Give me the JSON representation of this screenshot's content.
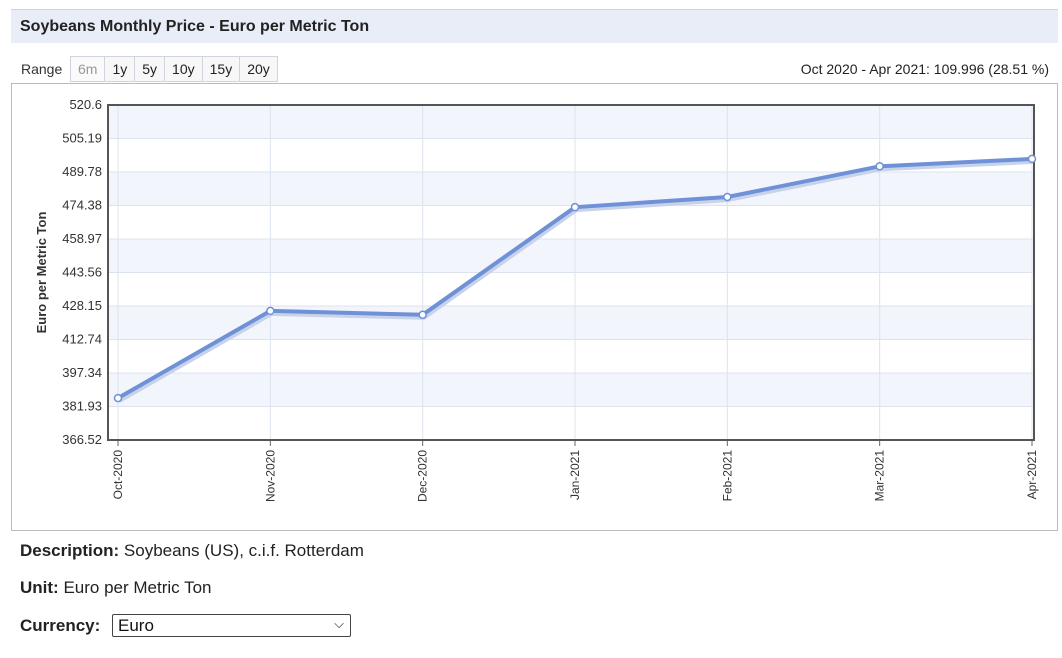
{
  "header": {
    "title": "Soybeans Monthly Price - Euro per Metric Ton"
  },
  "range": {
    "label": "Range",
    "buttons": [
      {
        "label": "6m",
        "disabled": true
      },
      {
        "label": "1y",
        "disabled": false
      },
      {
        "label": "5y",
        "disabled": false
      },
      {
        "label": "10y",
        "disabled": false
      },
      {
        "label": "15y",
        "disabled": false
      },
      {
        "label": "20y",
        "disabled": false
      }
    ],
    "summary": "Oct 2020 - Apr 2021: 109.996 (28.51 %)"
  },
  "chart_data": {
    "type": "line",
    "title": "",
    "xlabel": "",
    "ylabel": "Euro per Metric Ton",
    "categories": [
      "Oct-2020",
      "Nov-2020",
      "Dec-2020",
      "Jan-2021",
      "Feb-2021",
      "Mar-2021",
      "Apr-2021"
    ],
    "series": [
      {
        "values": [
          385.8,
          425.9,
          424.1,
          473.6,
          478.3,
          492.4,
          495.8
        ]
      }
    ],
    "yticks": [
      "366.52",
      "381.93",
      "397.34",
      "412.74",
      "428.15",
      "443.56",
      "458.97",
      "474.38",
      "489.78",
      "505.19",
      "520.6"
    ],
    "ylim": [
      366.52,
      520.6
    ],
    "grid": true,
    "line_color": "#6f91d8",
    "legend": "none"
  },
  "info": {
    "description_label": "Description:",
    "description_value": "Soybeans (US), c.i.f. Rotterdam",
    "unit_label": "Unit:",
    "unit_value": "Euro per Metric Ton",
    "currency_label": "Currency:",
    "currency_value": "Euro"
  }
}
